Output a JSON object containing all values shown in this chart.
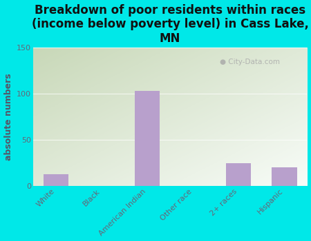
{
  "categories": [
    "White",
    "Black",
    "American Indian",
    "Other race",
    "2+ races",
    "Hispanic"
  ],
  "values": [
    13,
    0,
    103,
    0,
    25,
    20
  ],
  "bar_color": "#b8a0cc",
  "background_color": "#00e8e8",
  "plot_bg_color_top_left": "#c8d8b8",
  "plot_bg_color_bottom_right": "#f0f8f0",
  "title": "Breakdown of poor residents within races\n(income below poverty level) in Cass Lake,\nMN",
  "ylabel": "absolute numbers",
  "ylim": [
    0,
    150
  ],
  "yticks": [
    0,
    50,
    100,
    150
  ],
  "title_fontsize": 12,
  "ylabel_fontsize": 9,
  "tick_label_fontsize": 8,
  "watermark": "City-Data.com",
  "title_color": "#111111",
  "ylabel_color": "#555566",
  "tick_color": "#666677"
}
